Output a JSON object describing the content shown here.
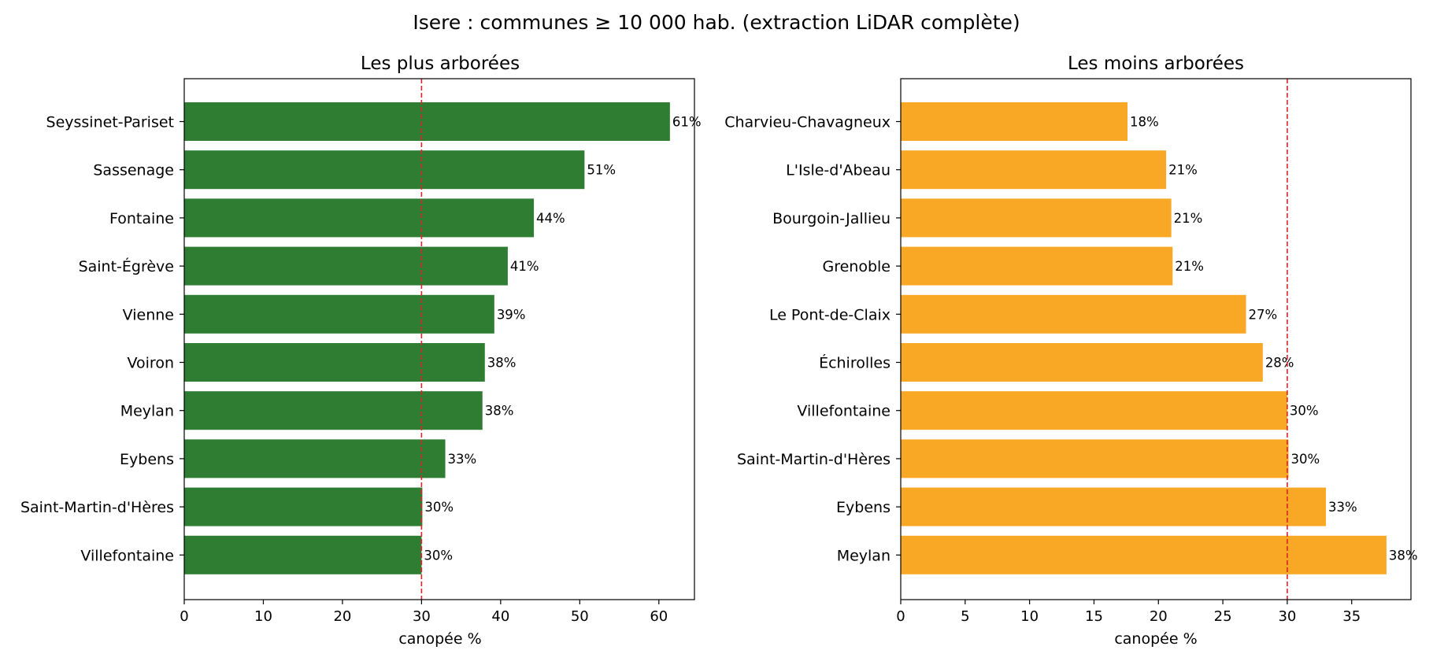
{
  "suptitle": "Isere : communes ≥ 10 000 hab. (extraction LiDAR complète)",
  "colors": {
    "left_bar": "#2e7d32",
    "right_bar": "#f9a825",
    "reference_line": "#d62728"
  },
  "chart_data": [
    {
      "type": "bar",
      "orientation": "horizontal",
      "title": "Les plus arborées",
      "xlabel": "canopée %",
      "ylabel": "",
      "categories": [
        "Seyssinet-Pariset",
        "Sassenage",
        "Fontaine",
        "Saint-Égrève",
        "Vienne",
        "Voiron",
        "Meylan",
        "Eybens",
        "Saint-Martin-d'Hères",
        "Villefontaine"
      ],
      "values": [
        61.4,
        50.6,
        44.2,
        40.9,
        39.2,
        38.0,
        37.7,
        33.0,
        30.1,
        30.0
      ],
      "value_labels": [
        "61%",
        "51%",
        "44%",
        "41%",
        "39%",
        "38%",
        "38%",
        "33%",
        "30%",
        "30%"
      ],
      "xlim": [
        0,
        64.5
      ],
      "xticks": [
        0,
        10,
        20,
        30,
        40,
        50,
        60
      ],
      "reference_line": 30,
      "color": "#2e7d32"
    },
    {
      "type": "bar",
      "orientation": "horizontal",
      "title": "Les moins arborées",
      "xlabel": "canopée %",
      "ylabel": "",
      "categories": [
        "Charvieu-Chavagneux",
        "L'Isle-d'Abeau",
        "Bourgoin-Jallieu",
        "Grenoble",
        "Le Pont-de-Claix",
        "Échirolles",
        "Villefontaine",
        "Saint-Martin-d'Hères",
        "Eybens",
        "Meylan"
      ],
      "values": [
        17.6,
        20.6,
        21.0,
        21.1,
        26.8,
        28.1,
        30.0,
        30.1,
        33.0,
        37.7
      ],
      "value_labels": [
        "18%",
        "21%",
        "21%",
        "21%",
        "27%",
        "28%",
        "30%",
        "30%",
        "33%",
        "38%"
      ],
      "xlim": [
        0,
        39.6
      ],
      "xticks": [
        0,
        5,
        10,
        15,
        20,
        25,
        30,
        35
      ],
      "reference_line": 30,
      "color": "#f9a825"
    }
  ]
}
